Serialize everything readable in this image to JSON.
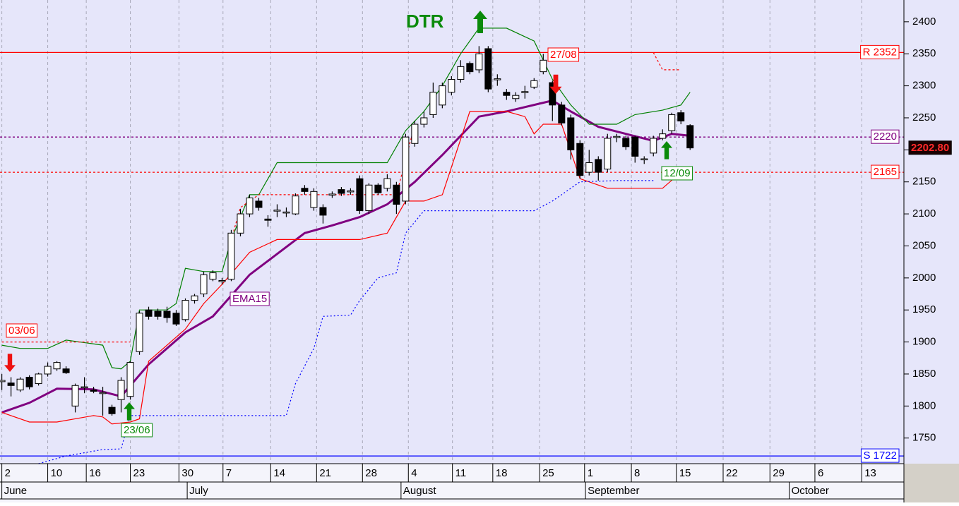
{
  "chart_data": {
    "type": "candlestick",
    "xlim": [
      -0.2,
      98.3
    ],
    "ylim": [
      1710,
      2434
    ],
    "yticks": [
      1750,
      1800,
      1850,
      1900,
      1950,
      2000,
      2050,
      2100,
      2150,
      2200,
      2250,
      2300,
      2350,
      2400
    ],
    "xticks": [
      {
        "value": 0,
        "label": "2"
      },
      {
        "value": 5,
        "label": "10"
      },
      {
        "value": 9.2,
        "label": "16"
      },
      {
        "value": 14,
        "label": "23"
      },
      {
        "value": 19.3,
        "label": "30"
      },
      {
        "value": 24.1,
        "label": "7"
      },
      {
        "value": 29.3,
        "label": "14"
      },
      {
        "value": 34.3,
        "label": "21"
      },
      {
        "value": 39.3,
        "label": "28"
      },
      {
        "value": 44.3,
        "label": "4"
      },
      {
        "value": 49.1,
        "label": "11"
      },
      {
        "value": 53.5,
        "label": "18"
      },
      {
        "value": 58.6,
        "label": "25"
      },
      {
        "value": 63.5,
        "label": "1"
      },
      {
        "value": 68.6,
        "label": "8"
      },
      {
        "value": 73.5,
        "label": "15"
      },
      {
        "value": 78.6,
        "label": "22"
      },
      {
        "value": 83.7,
        "label": "29"
      },
      {
        "value": 88.6,
        "label": "6"
      },
      {
        "value": 93.7,
        "label": "13"
      }
    ],
    "months": [
      {
        "value": 0,
        "label": "June"
      },
      {
        "value": 20.2,
        "label": "July"
      },
      {
        "value": 43.5,
        "label": "August"
      },
      {
        "value": 63.6,
        "label": "September"
      },
      {
        "value": 85.8,
        "label": "October"
      }
    ],
    "grid": true,
    "x": [
      0,
      1,
      2,
      3,
      4,
      5,
      6,
      7,
      8,
      9,
      10,
      11,
      12,
      13,
      14,
      15,
      16,
      17,
      18,
      19,
      20,
      21,
      22,
      23,
      24,
      25,
      26,
      27,
      28,
      29,
      30,
      31,
      32,
      33,
      34,
      35,
      36,
      37,
      38,
      39,
      40,
      41,
      42,
      43,
      44,
      45,
      46,
      47,
      48,
      49,
      50,
      51,
      52,
      53,
      54,
      55,
      56,
      57,
      58,
      59,
      60,
      61,
      62,
      63,
      64,
      65,
      66,
      67,
      68,
      69,
      70,
      71,
      72,
      73,
      74,
      75
    ],
    "open": [
      1838,
      1836,
      1825,
      1845,
      1835,
      1850,
      1858,
      1858,
      1800,
      1830,
      1825,
      1820,
      1798,
      1810,
      1815,
      1885,
      1950,
      1948,
      1948,
      1945,
      1935,
      1965,
      1975,
      1998,
      1995,
      1998,
      2070,
      2100,
      2120,
      2092,
      2105,
      2102,
      2100,
      2140,
      2110,
      2110,
      2130,
      2138,
      2135,
      2155,
      2105,
      2145,
      2140,
      2145,
      2120,
      2210,
      2240,
      2255,
      2270,
      2290,
      2310,
      2335,
      2325,
      2358,
      2310,
      2290,
      2280,
      2290,
      2298,
      2322,
      2305,
      2270,
      2250,
      2210,
      2165,
      2185,
      2170,
      2220,
      2218,
      2220,
      2185,
      2195,
      2218,
      2230,
      2258,
      2238
    ],
    "high": [
      1850,
      1845,
      1845,
      1848,
      1852,
      1868,
      1870,
      1862,
      1835,
      1845,
      1830,
      1830,
      1802,
      1845,
      1870,
      1948,
      1955,
      1952,
      1955,
      1950,
      1968,
      1975,
      2010,
      2012,
      2000,
      2075,
      2108,
      2130,
      2125,
      2098,
      2115,
      2110,
      2132,
      2145,
      2140,
      2115,
      2135,
      2142,
      2140,
      2160,
      2148,
      2148,
      2162,
      2150,
      2225,
      2245,
      2260,
      2305,
      2305,
      2315,
      2340,
      2338,
      2362,
      2362,
      2318,
      2295,
      2290,
      2300,
      2312,
      2350,
      2308,
      2275,
      2255,
      2215,
      2200,
      2190,
      2225,
      2225,
      2222,
      2222,
      2190,
      2222,
      2232,
      2258,
      2262,
      2240
    ],
    "low": [
      1825,
      1815,
      1822,
      1826,
      1832,
      1846,
      1855,
      1850,
      1790,
      1820,
      1820,
      1785,
      1785,
      1790,
      1810,
      1880,
      1935,
      1935,
      1930,
      1925,
      1932,
      1960,
      1970,
      1995,
      1990,
      1995,
      2065,
      2095,
      2105,
      2080,
      2095,
      2095,
      2098,
      2130,
      2105,
      2085,
      2125,
      2128,
      2130,
      2100,
      2100,
      2130,
      2135,
      2100,
      2115,
      2205,
      2235,
      2250,
      2265,
      2285,
      2305,
      2318,
      2320,
      2290,
      2300,
      2278,
      2275,
      2280,
      2295,
      2318,
      2245,
      2238,
      2185,
      2155,
      2160,
      2152,
      2165,
      2212,
      2200,
      2180,
      2178,
      2190,
      2215,
      2225,
      2240,
      2200
    ],
    "close": [
      1840,
      1832,
      1842,
      1830,
      1850,
      1862,
      1868,
      1852,
      1832,
      1830,
      1823,
      1821,
      1788,
      1840,
      1868,
      1945,
      1940,
      1940,
      1938,
      1928,
      1965,
      1972,
      2005,
      2008,
      1996,
      2070,
      2100,
      2125,
      2110,
      2090,
      2106,
      2103,
      2128,
      2135,
      2135,
      2098,
      2131,
      2132,
      2136,
      2105,
      2145,
      2133,
      2155,
      2115,
      2220,
      2240,
      2250,
      2290,
      2300,
      2310,
      2330,
      2322,
      2350,
      2295,
      2311,
      2285,
      2285,
      2291,
      2308,
      2340,
      2270,
      2242,
      2200,
      2160,
      2180,
      2165,
      2218,
      2221,
      2205,
      2190,
      2186,
      2218,
      2225,
      2255,
      2245,
      2203
    ],
    "series": [
      {
        "name": "EMA15",
        "color": "#800080",
        "x": [
          0,
          3,
          6,
          10,
          13,
          16,
          20,
          23,
          27,
          33,
          36,
          39,
          42,
          45,
          48,
          52,
          55,
          60,
          62,
          65,
          68,
          71,
          73,
          75
        ],
        "values": [
          1790,
          1805,
          1827,
          1826,
          1815,
          1865,
          1915,
          1940,
          2005,
          2070,
          2082,
          2095,
          2115,
          2150,
          2192,
          2252,
          2260,
          2277,
          2260,
          2236,
          2225,
          2214,
          2225,
          2222
        ]
      },
      {
        "color": "#008000",
        "x": [
          0,
          2,
          5,
          7,
          11,
          12,
          13,
          14,
          15,
          18,
          19,
          20,
          22,
          24,
          25,
          26,
          27,
          28,
          30,
          42,
          44,
          46,
          48,
          50,
          52,
          55,
          58,
          60,
          62,
          64,
          67,
          69,
          72,
          74,
          75
        ],
        "values": [
          1895,
          1890,
          1890,
          1903,
          1895,
          1860,
          1858,
          1870,
          1950,
          1950,
          1960,
          2015,
          2010,
          2010,
          2060,
          2095,
          2130,
          2130,
          2180,
          2180,
          2230,
          2260,
          2300,
          2350,
          2390,
          2390,
          2370,
          2310,
          2270,
          2240,
          2240,
          2255,
          2262,
          2270,
          2290
        ]
      },
      {
        "color": "#ff0000",
        "x": [
          0,
          3,
          6,
          10,
          11,
          12,
          14,
          15,
          16,
          20,
          22,
          24,
          27,
          30,
          33,
          39,
          42,
          44,
          46,
          48,
          51,
          55,
          57,
          58,
          59,
          61,
          63,
          66,
          72,
          74,
          75
        ],
        "values": [
          1790,
          1775,
          1775,
          1785,
          1783,
          1772,
          1775,
          1780,
          1870,
          1920,
          1960,
          1990,
          2040,
          2060,
          2060,
          2060,
          2070,
          2120,
          2120,
          2130,
          2260,
          2260,
          2252,
          2225,
          2240,
          2240,
          2155,
          2140,
          2140,
          2165,
          2172
        ]
      },
      {
        "color": "#0000ff",
        "dash": "2 3",
        "x": [
          4,
          7,
          11,
          13,
          14,
          31,
          32,
          34,
          35,
          38,
          39,
          41,
          43,
          44,
          46,
          53,
          58,
          60,
          63,
          67,
          71
        ],
        "values": [
          1710,
          1722,
          1732,
          1733,
          1785,
          1785,
          1835,
          1890,
          1940,
          1942,
          1965,
          2000,
          2008,
          2070,
          2105,
          2105,
          2105,
          2120,
          2150,
          2152,
          2152
        ]
      },
      {
        "color": "#ff0000",
        "dash": "3 3",
        "x": [
          0,
          14,
          15,
          25,
          26,
          28,
          43,
          45,
          46,
          71,
          72,
          74
        ],
        "values": [
          1900,
          1900,
          null,
          2060,
          2110,
          2130,
          2130,
          2240,
          null,
          2352,
          2325,
          2325
        ]
      }
    ],
    "levels": [
      {
        "label": "R 2352",
        "value": 2352,
        "color": "#ff0000"
      },
      {
        "label": "2220",
        "value": 2220,
        "color": "#800080",
        "dash": "3 3"
      },
      {
        "label": "2165",
        "value": 2165,
        "color": "#ff0000",
        "dash": "3 3"
      },
      {
        "label": "S 1722",
        "value": 1722,
        "color": "#0000ff"
      }
    ],
    "last_price": {
      "value": 2202.8,
      "label": "2202.80"
    },
    "annotations": [
      "DTR",
      "03/06",
      "23/06",
      "27/08",
      "12/09"
    ]
  }
}
